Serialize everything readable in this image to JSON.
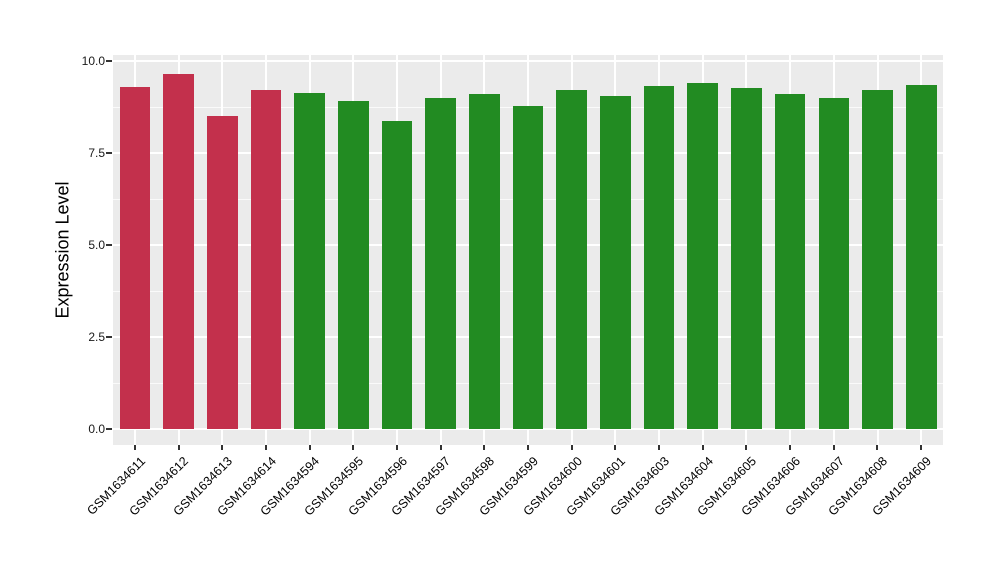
{
  "chart_data": {
    "type": "bar",
    "title": "",
    "xlabel": "",
    "ylabel": "Expression Level",
    "ylim": [
      0,
      10
    ],
    "y_ticks": [
      0.0,
      2.5,
      5.0,
      7.5,
      10.0
    ],
    "y_tick_labels": [
      "0.0",
      "2.5",
      "5.0",
      "7.5",
      "10.0"
    ],
    "y_minor_ticks": [
      1.25,
      3.75,
      6.25,
      8.75
    ],
    "grid": "on",
    "legend_position": "none",
    "categories": [
      "GSM1634611",
      "GSM1634612",
      "GSM1634613",
      "GSM1634614",
      "GSM1634594",
      "GSM1634595",
      "GSM1634596",
      "GSM1634597",
      "GSM1634598",
      "GSM1634599",
      "GSM1634600",
      "GSM1634601",
      "GSM1634603",
      "GSM1634604",
      "GSM1634605",
      "GSM1634606",
      "GSM1634607",
      "GSM1634608",
      "GSM1634609"
    ],
    "values": [
      9.3,
      9.65,
      8.52,
      9.22,
      9.13,
      8.91,
      8.37,
      9.0,
      9.1,
      8.78,
      9.22,
      9.05,
      9.33,
      9.4,
      9.27,
      9.12,
      9.0,
      9.22,
      9.35
    ],
    "bar_colors": [
      "#C3304C",
      "#C3304C",
      "#C3304C",
      "#C3304C",
      "#228B22",
      "#228B22",
      "#228B22",
      "#228B22",
      "#228B22",
      "#228B22",
      "#228B22",
      "#228B22",
      "#228B22",
      "#228B22",
      "#228B22",
      "#228B22",
      "#228B22",
      "#228B22",
      "#228B22"
    ]
  },
  "colors": {
    "panel_background": "#EBEBEB",
    "gridline": "#FFFFFF",
    "tick_mark": "#333333",
    "group_red": "#C3304C",
    "group_green": "#228B22"
  }
}
